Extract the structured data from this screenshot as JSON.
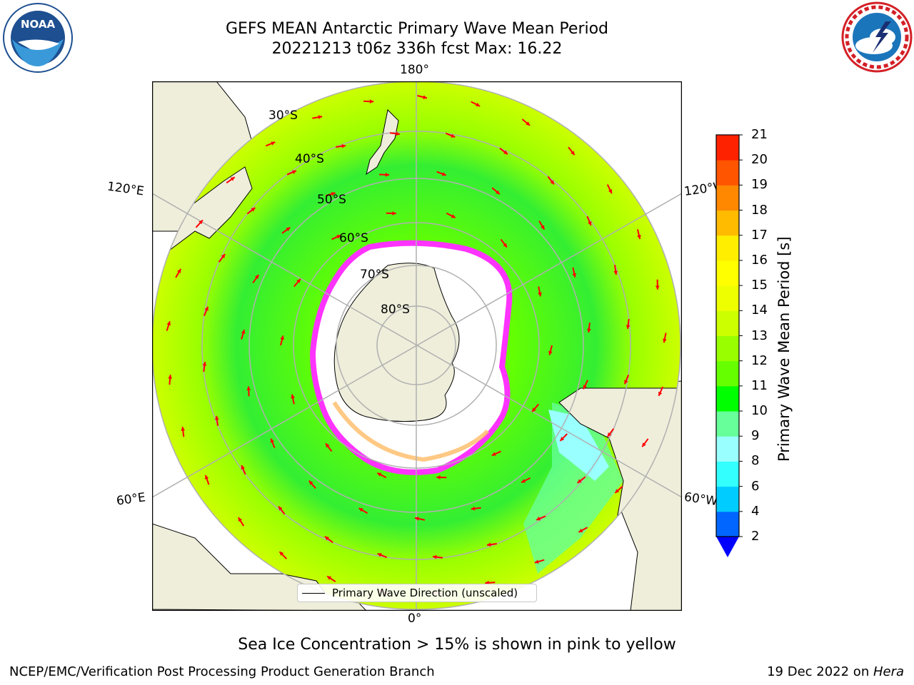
{
  "header": {
    "title_line1": "GEFS MEAN Antarctic Primary Wave Mean Period",
    "title_line2": "20221213 t06z 336h fcst   Max: 16.22"
  },
  "logos": {
    "left": {
      "name": "noaa-logo",
      "text": "NOAA"
    },
    "right": {
      "name": "national-weather-service-logo"
    }
  },
  "map": {
    "longitude_labels": {
      "top": "180°",
      "bottom": "0°",
      "upper_left": "120°E",
      "lower_left": "60°E",
      "upper_right": "120°W",
      "lower_right": "60°W"
    },
    "latitude_labels": [
      "30°S",
      "40°S",
      "50°S",
      "60°S",
      "70°S",
      "80°S"
    ],
    "legend_label": "Primary Wave Direction (unscaled)",
    "colors": {
      "land": "#efeedb",
      "ice": "#ffffff",
      "ocean_mid": "#66ff00",
      "ocean_high": "#ccff00",
      "arrow": "#ff0000"
    }
  },
  "colorbar": {
    "title": "Primary Wave Mean Period [s]",
    "ticks": [
      "2",
      "4",
      "6",
      "8",
      "9",
      "10",
      "11",
      "12",
      "13",
      "14",
      "15",
      "16",
      "17",
      "18",
      "19",
      "20",
      "21"
    ],
    "colors": [
      "#0066ff",
      "#00ccff",
      "#33ffff",
      "#99ffff",
      "#66ff99",
      "#00ff00",
      "#66ff00",
      "#99ff00",
      "#ccff00",
      "#eeff00",
      "#ffff00",
      "#ffee00",
      "#ffbb00",
      "#ff8800",
      "#ff5500",
      "#ff2200"
    ],
    "extend_color": "#0000ff"
  },
  "caption": "Sea Ice Concentration > 15% is shown in pink to yellow",
  "footer": {
    "left": "NCEP/EMC/Verification Post Processing Product Generation Branch",
    "right_prefix": "19 Dec 2022 on ",
    "right_host": "Hera"
  }
}
